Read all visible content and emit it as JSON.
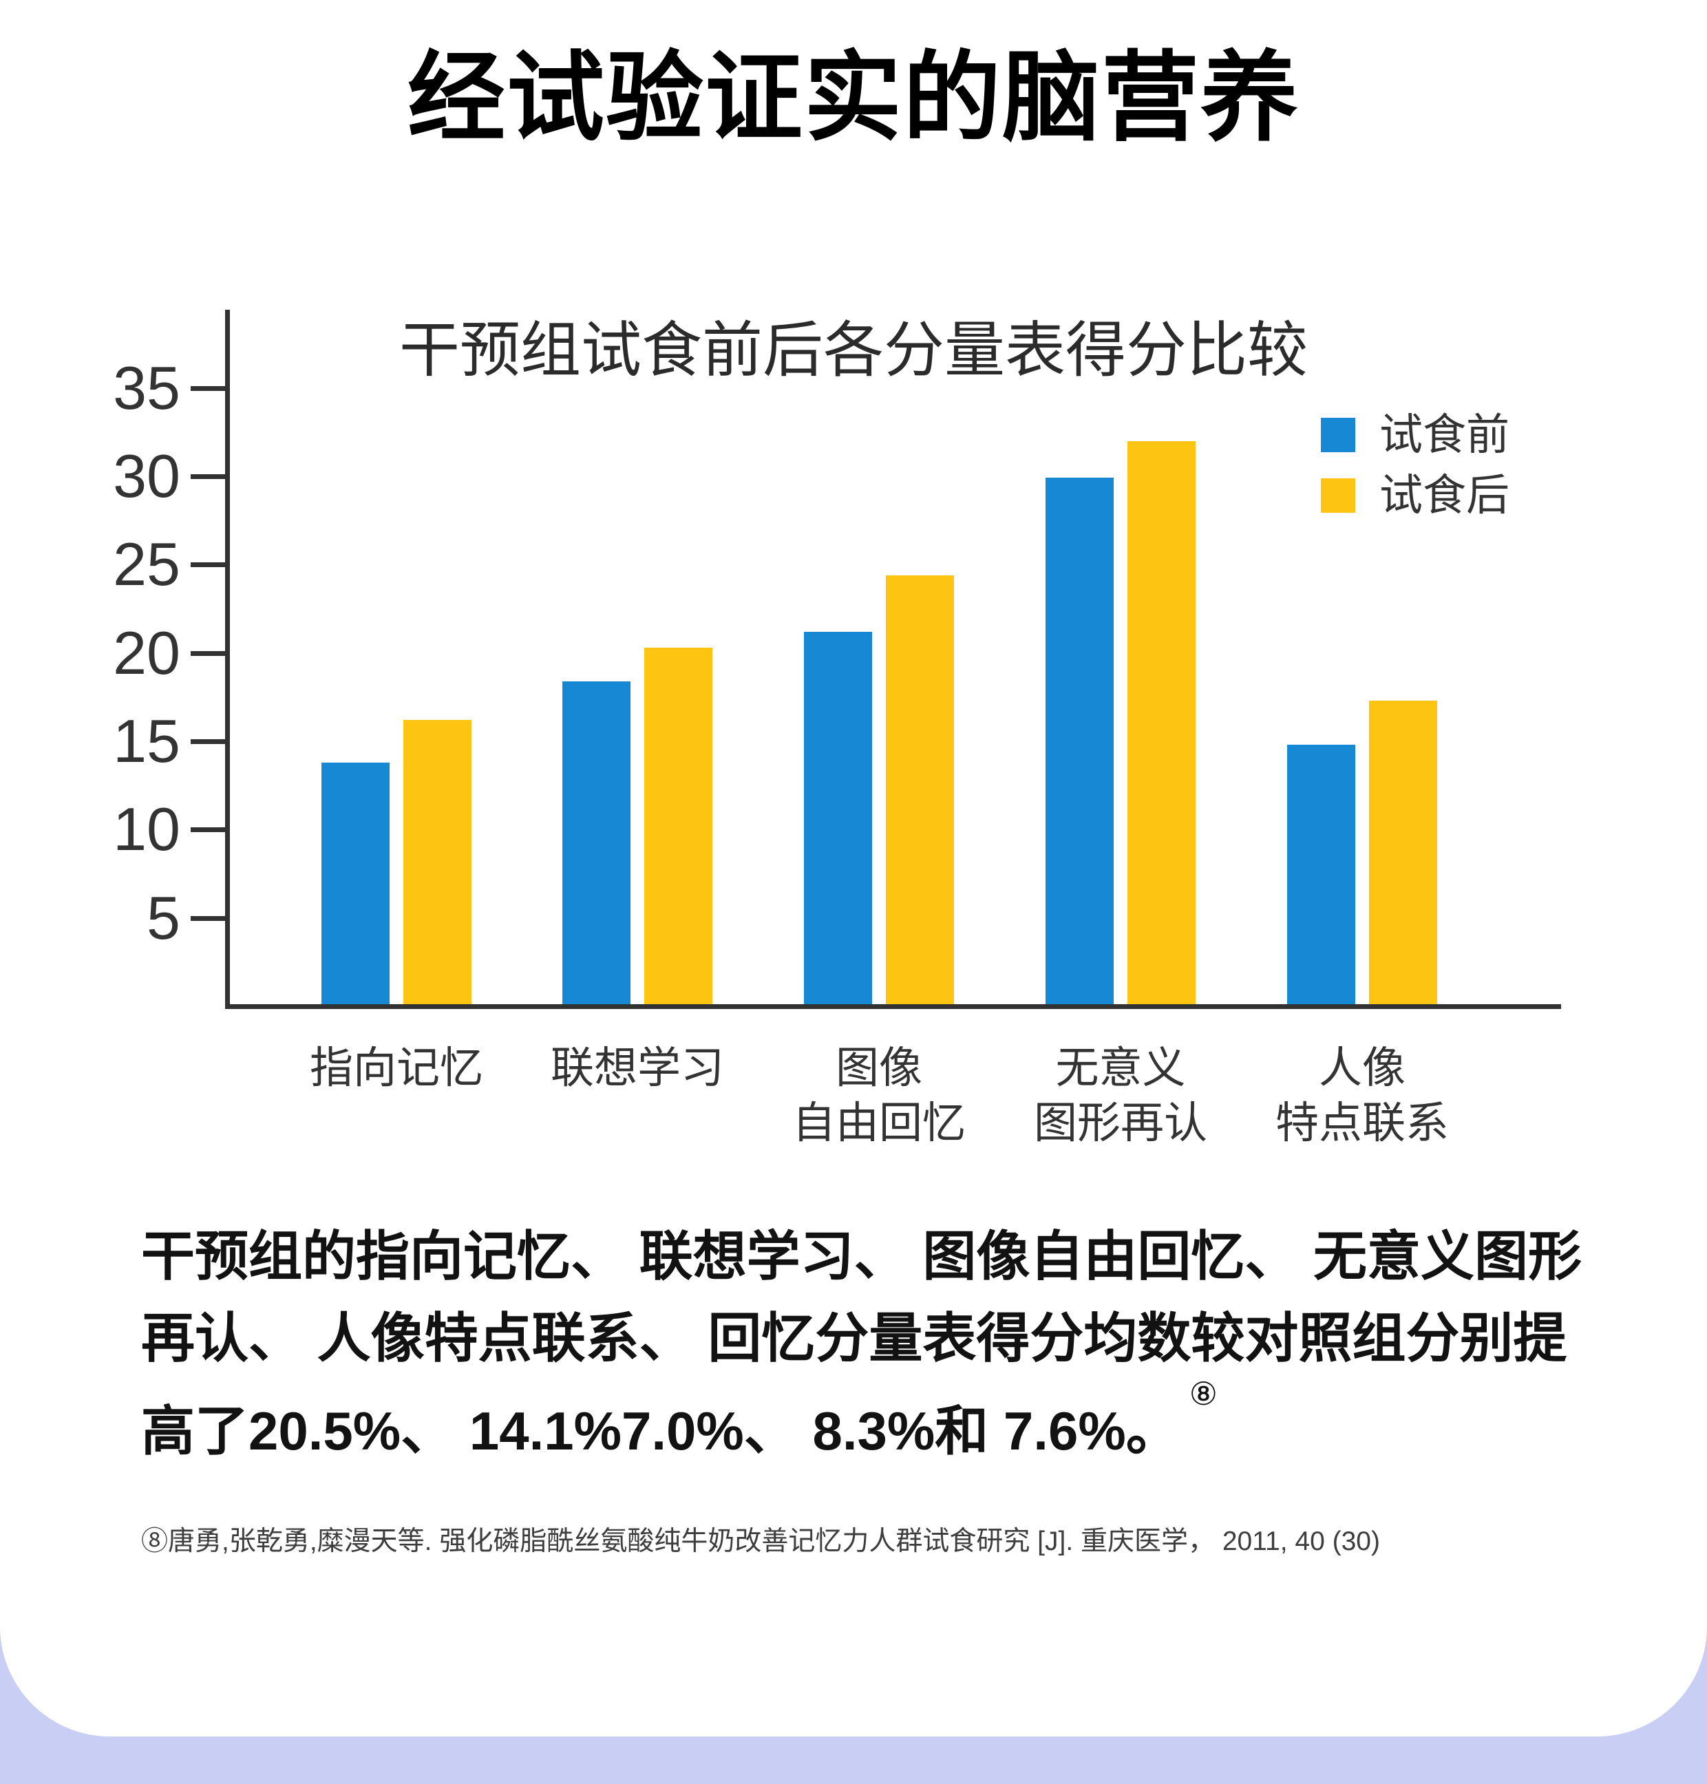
{
  "page": {
    "title": "经试验证实的脑营养",
    "background": "#ffffff",
    "band_color": "#c9cff4"
  },
  "chart_data": {
    "type": "bar",
    "title": "干预组试食前后各分量表得分比较",
    "categories": [
      [
        "指向记忆"
      ],
      [
        "联想学习"
      ],
      [
        "图像",
        "自由回忆"
      ],
      [
        "无意义",
        "图形再认"
      ],
      [
        "人像",
        "特点联系"
      ]
    ],
    "series": [
      {
        "name": "试食前",
        "color": "#1788d4",
        "values": [
          13.8,
          18.4,
          21.2,
          29.9,
          14.8
        ]
      },
      {
        "name": "试食后",
        "color": "#fdc511",
        "values": [
          16.2,
          20.3,
          24.4,
          32.0,
          17.3
        ]
      }
    ],
    "yticks": [
      35,
      30,
      25,
      20,
      15,
      10,
      5
    ],
    "ylim": [
      0,
      38
    ],
    "legend_position": "top-right",
    "grid": false,
    "axis_color": "#323232",
    "label_color": "#333333"
  },
  "paragraph": {
    "lines": [
      "干预组的指向记忆、 联想学习、 图像自由回忆、 无意义图形",
      "再认、 人像特点联系、 回忆分量表得分均数较对照组分别提",
      "高了20.5%、 14.1%7.0%、 8.3%和 7.6%。"
    ],
    "ref_mark": "⑧"
  },
  "footnote": "⑧唐勇,张乾勇,糜漫天等. 强化磷脂酰丝氨酸纯牛奶改善记忆力人群试食研究 [J]. 重庆医学， 2011, 40 (30)"
}
